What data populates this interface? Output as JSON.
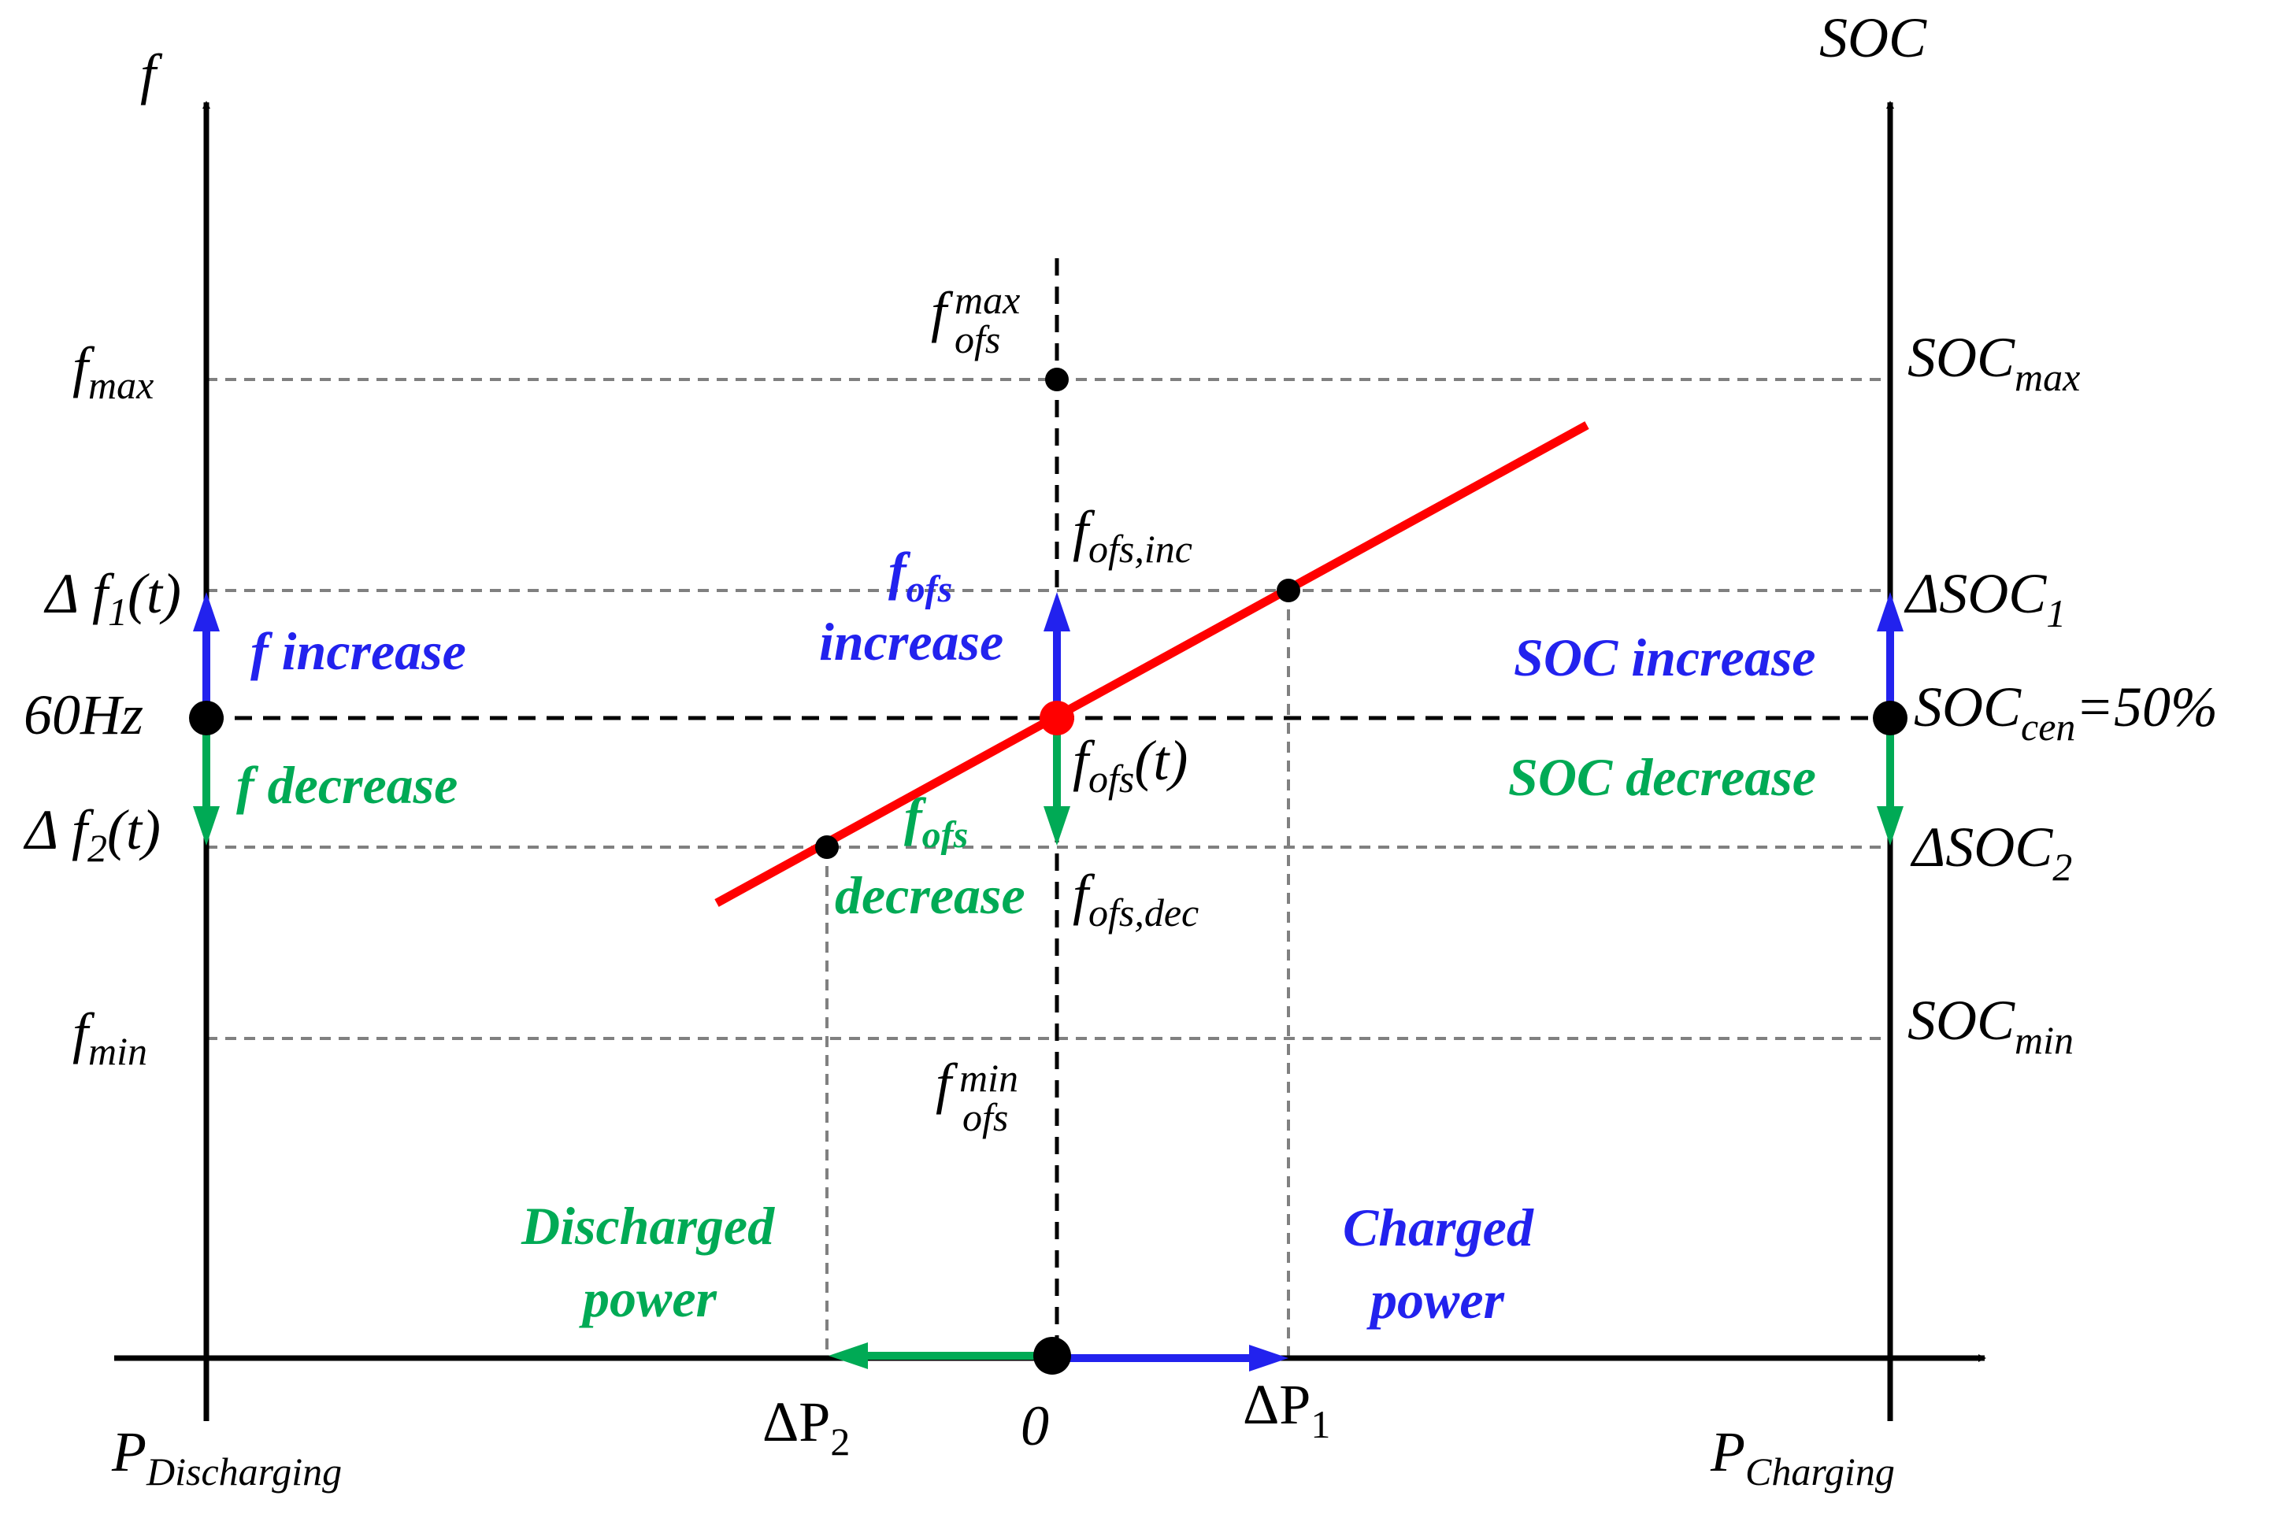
{
  "colors": {
    "axis": "#000000",
    "guide": "#808080",
    "droop_line": "#ff0000",
    "increase": "#2222ee",
    "decrease": "#00aa55",
    "center_point": "#ff0000"
  },
  "left_axis": {
    "var": "f",
    "f_max": {
      "base": "f",
      "sub": "max"
    },
    "df1": {
      "prefix": "Δ f",
      "sub": "1",
      "suffix": "(t)"
    },
    "center": "60Hz",
    "df2": {
      "prefix": "Δ f",
      "sub": "2",
      "suffix": "(t)"
    },
    "f_min": {
      "base": "f",
      "sub": "min"
    },
    "bottom": {
      "base": "P",
      "sub": "Discharging"
    }
  },
  "right_axis": {
    "var": "SOC",
    "soc_max": {
      "base": "SOC",
      "sub": "max"
    },
    "dsoc1": {
      "base": "ΔSOC",
      "sub": "1"
    },
    "center": {
      "base": "SOC",
      "sub": "cen",
      "suffix": "=50%"
    },
    "dsoc2": {
      "base": "ΔSOC",
      "sub": "2"
    },
    "soc_min": {
      "base": "SOC",
      "sub": "min"
    },
    "bottom": {
      "base": "P",
      "sub": "Charging"
    }
  },
  "center_axis": {
    "fofs_max": {
      "base": "f",
      "sup": "max",
      "sub": "ofs"
    },
    "fofs_inc": {
      "base": "f",
      "sub": "ofs,inc"
    },
    "fofs_t": {
      "base": "f",
      "sub": "ofs",
      "suffix": "(t)"
    },
    "fofs_dec": {
      "base": "f",
      "sub": "ofs,dec"
    },
    "fofs_min": {
      "base": "f",
      "sup": "min",
      "sub": "ofs"
    }
  },
  "horizontal_axis": {
    "dp2": {
      "base": "ΔP",
      "sub": "2"
    },
    "zero": "0",
    "dp1": {
      "base": "ΔP",
      "sub": "1"
    }
  },
  "annotations": {
    "f_increase": "f increase",
    "f_decrease": "f decrease",
    "fofs_increase": {
      "f": "f",
      "sub": "ofs",
      "word": "increase"
    },
    "fofs_decrease": {
      "f": "f",
      "sub": "ofs",
      "word": "decrease"
    },
    "soc_increase": "SOC increase",
    "soc_decrease": "SOC decrease",
    "discharged_power": [
      "Discharged",
      "power"
    ],
    "charged_power": [
      "Charged",
      "power"
    ]
  }
}
